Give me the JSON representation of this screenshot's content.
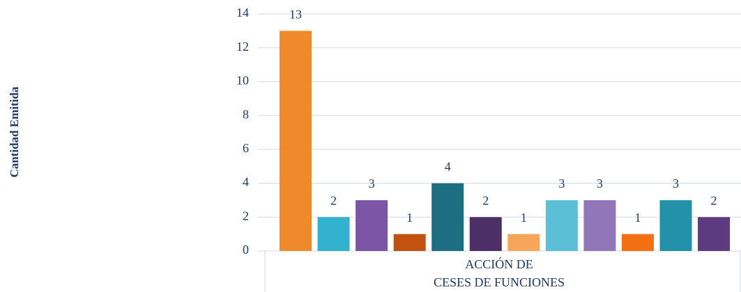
{
  "chart_data": {
    "type": "bar",
    "y_label": "Cantidad Emitida",
    "categories": [
      "ACCIÓN DE CESES DE FUNCIONES"
    ],
    "series": [
      {
        "color": "#ee8a2c",
        "values": [
          13
        ]
      },
      {
        "color": "#33b2cf",
        "values": [
          2
        ]
      },
      {
        "color": "#7b55a6",
        "values": [
          3
        ]
      },
      {
        "color": "#c2520f",
        "values": [
          1
        ]
      },
      {
        "color": "#1b6e80",
        "values": [
          4
        ]
      },
      {
        "color": "#4b2f66",
        "values": [
          2
        ]
      },
      {
        "color": "#f6a65a",
        "values": [
          1
        ]
      },
      {
        "color": "#5bbfd6",
        "values": [
          3
        ]
      },
      {
        "color": "#9276ba",
        "values": [
          3
        ]
      },
      {
        "color": "#f26f12",
        "values": [
          1
        ]
      },
      {
        "color": "#2391aa",
        "values": [
          3
        ]
      },
      {
        "color": "#5c3b80",
        "values": [
          2
        ]
      }
    ],
    "ylim": [
      0,
      14
    ],
    "yticks": [
      0,
      2,
      4,
      6,
      8,
      10,
      12,
      14
    ],
    "grid": true
  }
}
